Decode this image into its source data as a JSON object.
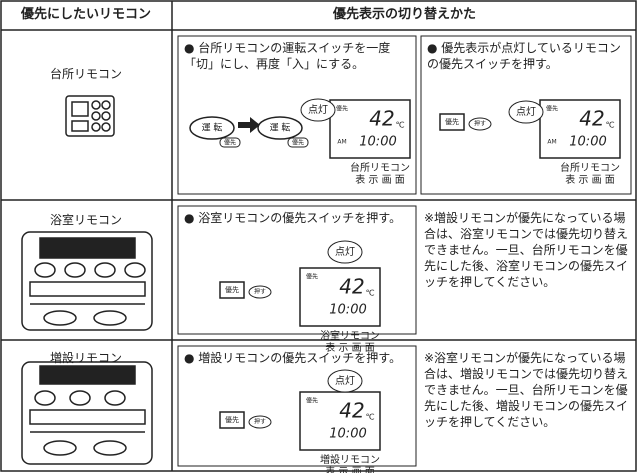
{
  "header": {
    "col1": "優先にしたいリモコン",
    "col2": "優先表示の切り替えかた"
  },
  "rows": [
    {
      "name": "台所リモコン",
      "cells": [
        {
          "text": "● 台所リモコンの運転スイッチを一度「切」にし、再度「入」にする。",
          "buttons": [
            "運 転",
            "優先",
            "運 転",
            "優先"
          ],
          "display": {
            "lamp": "点灯",
            "mark": "優先",
            "temp": "42",
            "unit": "℃",
            "am": "AM",
            "time": "10:00",
            "caption": [
              "台所リモコン",
              "表 示 画 面"
            ]
          }
        },
        {
          "text": "● 優先表示が点灯しているリモコンの優先スイッチを押す。",
          "buttons": [
            "優先",
            "押す"
          ],
          "display": {
            "lamp": "点灯",
            "mark": "優先",
            "temp": "42",
            "unit": "℃",
            "am": "AM",
            "time": "10:00",
            "caption": [
              "台所リモコン",
              "表 示 画 面"
            ]
          }
        }
      ]
    },
    {
      "name": "浴室リモコン",
      "cells": [
        {
          "text": "● 浴室リモコンの優先スイッチを押す。",
          "buttons": [
            "優先",
            "押す"
          ],
          "display": {
            "lamp": "点灯",
            "mark": "優先",
            "temp": "42",
            "unit": "℃",
            "time": "10:00",
            "caption": [
              "浴室リモコン",
              "表 示 画 面"
            ]
          }
        }
      ],
      "note": "※増設リモコンが優先になっている場合は、浴室リモコンでは優先切り替えできません。一旦、台所リモコンを優先にした後、浴室リモコンの優先スイッチを押してください。"
    },
    {
      "name": "増設リモコン",
      "cells": [
        {
          "text": "● 増設リモコンの優先スイッチを押す。",
          "buttons": [
            "優先",
            "押す"
          ],
          "display": {
            "lamp": "点灯",
            "mark": "優先",
            "temp": "42",
            "unit": "℃",
            "time": "10:00",
            "caption": [
              "増設リモコン",
              "表 示 画 面"
            ]
          }
        }
      ],
      "note": "※浴室リモコンが優先になっている場合は、増設リモコンでは優先切り替えできません。一旦、台所リモコンを優先にした後、増設リモコンの優先スイッチを押してください。"
    }
  ]
}
